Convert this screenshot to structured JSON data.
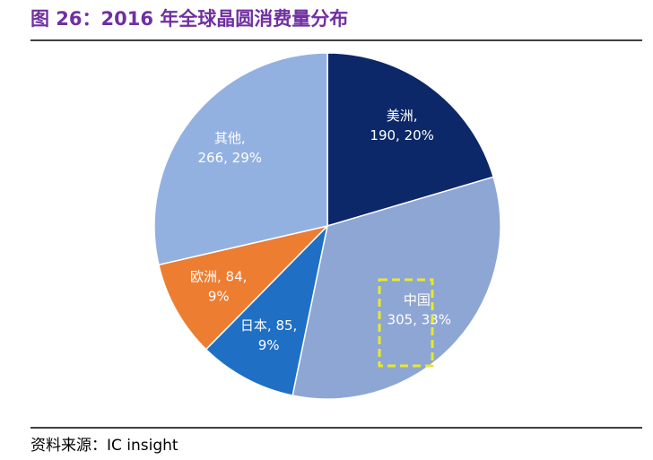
{
  "chart_data": {
    "type": "pie",
    "title": "图 26：2016 年全球晶圆消费量分布",
    "values": [
      190,
      305,
      85,
      84,
      266
    ],
    "value_labels": [
      [
        "美洲,",
        "190, 20%"
      ],
      [
        "中国,",
        "305, 33%"
      ],
      [
        "日本, 85,",
        "9%"
      ],
      [
        "欧洲, 84,",
        "9%"
      ],
      [
        "其他,",
        "266, 29%"
      ]
    ],
    "colors": [
      "#0c2868",
      "#8ea6d3",
      "#1f6fc5",
      "#ed7d31",
      "#93b1e0"
    ],
    "source": "资料来源：IC insight"
  }
}
